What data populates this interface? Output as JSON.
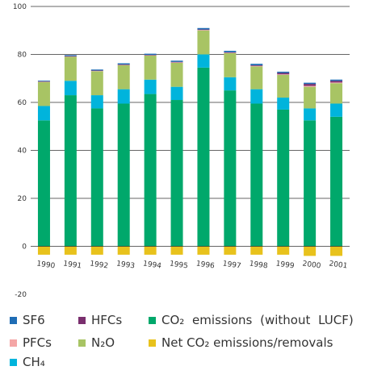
{
  "chart_data": {
    "type": "bar",
    "stacked": true,
    "categories": [
      "1990",
      "1991",
      "1992",
      "1993",
      "1994",
      "1995",
      "1996",
      "1997",
      "1998",
      "1999",
      "2000",
      "2001"
    ],
    "ylim": [
      -20,
      100
    ],
    "yticks": [
      "100",
      "80",
      "60",
      "40",
      "20",
      "0",
      "-20"
    ],
    "grid": true,
    "legend_position": "bottom",
    "series": [
      {
        "name": "Net CO2 emissions/removals",
        "color": "#e8c21c",
        "values": [
          -3.5,
          -3.5,
          -3.5,
          -3.5,
          -3.5,
          -3.5,
          -3.5,
          -3.5,
          -3.5,
          -3.5,
          -4.0,
          -4.0
        ]
      },
      {
        "name": "CO2 emissions (without LUCF)",
        "color": "#00a86b",
        "values": [
          52.5,
          63.0,
          57.5,
          59.5,
          63.5,
          61.0,
          74.5,
          65.0,
          59.5,
          57.0,
          52.5,
          54.0
        ]
      },
      {
        "name": "CH4",
        "color": "#00b4dc",
        "values": [
          6.0,
          6.0,
          5.5,
          6.0,
          6.0,
          5.5,
          5.5,
          5.5,
          6.0,
          5.0,
          5.0,
          5.5
        ]
      },
      {
        "name": "N2O",
        "color": "#a8c464",
        "values": [
          10.0,
          10.0,
          10.0,
          10.0,
          10.0,
          10.0,
          10.0,
          10.0,
          9.5,
          9.5,
          9.0,
          8.5
        ]
      },
      {
        "name": "PFCs",
        "color": "#f4a6a6",
        "values": [
          0.2,
          0.2,
          0.2,
          0.2,
          0.2,
          0.2,
          0.2,
          0.2,
          0.2,
          0.2,
          0.4,
          0.3
        ]
      },
      {
        "name": "HFCs",
        "color": "#7a2f6e",
        "values": [
          0.1,
          0.1,
          0.1,
          0.1,
          0.1,
          0.2,
          0.2,
          0.2,
          0.3,
          0.6,
          0.8,
          0.7
        ]
      },
      {
        "name": "SF6",
        "color": "#1f6db5",
        "values": [
          0.3,
          0.4,
          0.4,
          0.5,
          0.5,
          0.5,
          0.6,
          0.6,
          0.6,
          0.5,
          0.5,
          0.5
        ]
      }
    ]
  },
  "legend": {
    "sf6": "SF6",
    "hfcs": "HFCs",
    "co2": "CO₂ emissions (without LUCF)",
    "pfcs": "PFCs",
    "n2o": "N₂O",
    "net_co2": "Net CO₂ emissions/removals",
    "ch4": "CH₄"
  },
  "colors": {
    "sf6": "#1f6db5",
    "hfcs": "#7a2f6e",
    "co2": "#00a86b",
    "pfcs": "#f4a6a6",
    "n2o": "#a8c464",
    "net_co2": "#e8c21c",
    "ch4": "#00b4dc"
  }
}
